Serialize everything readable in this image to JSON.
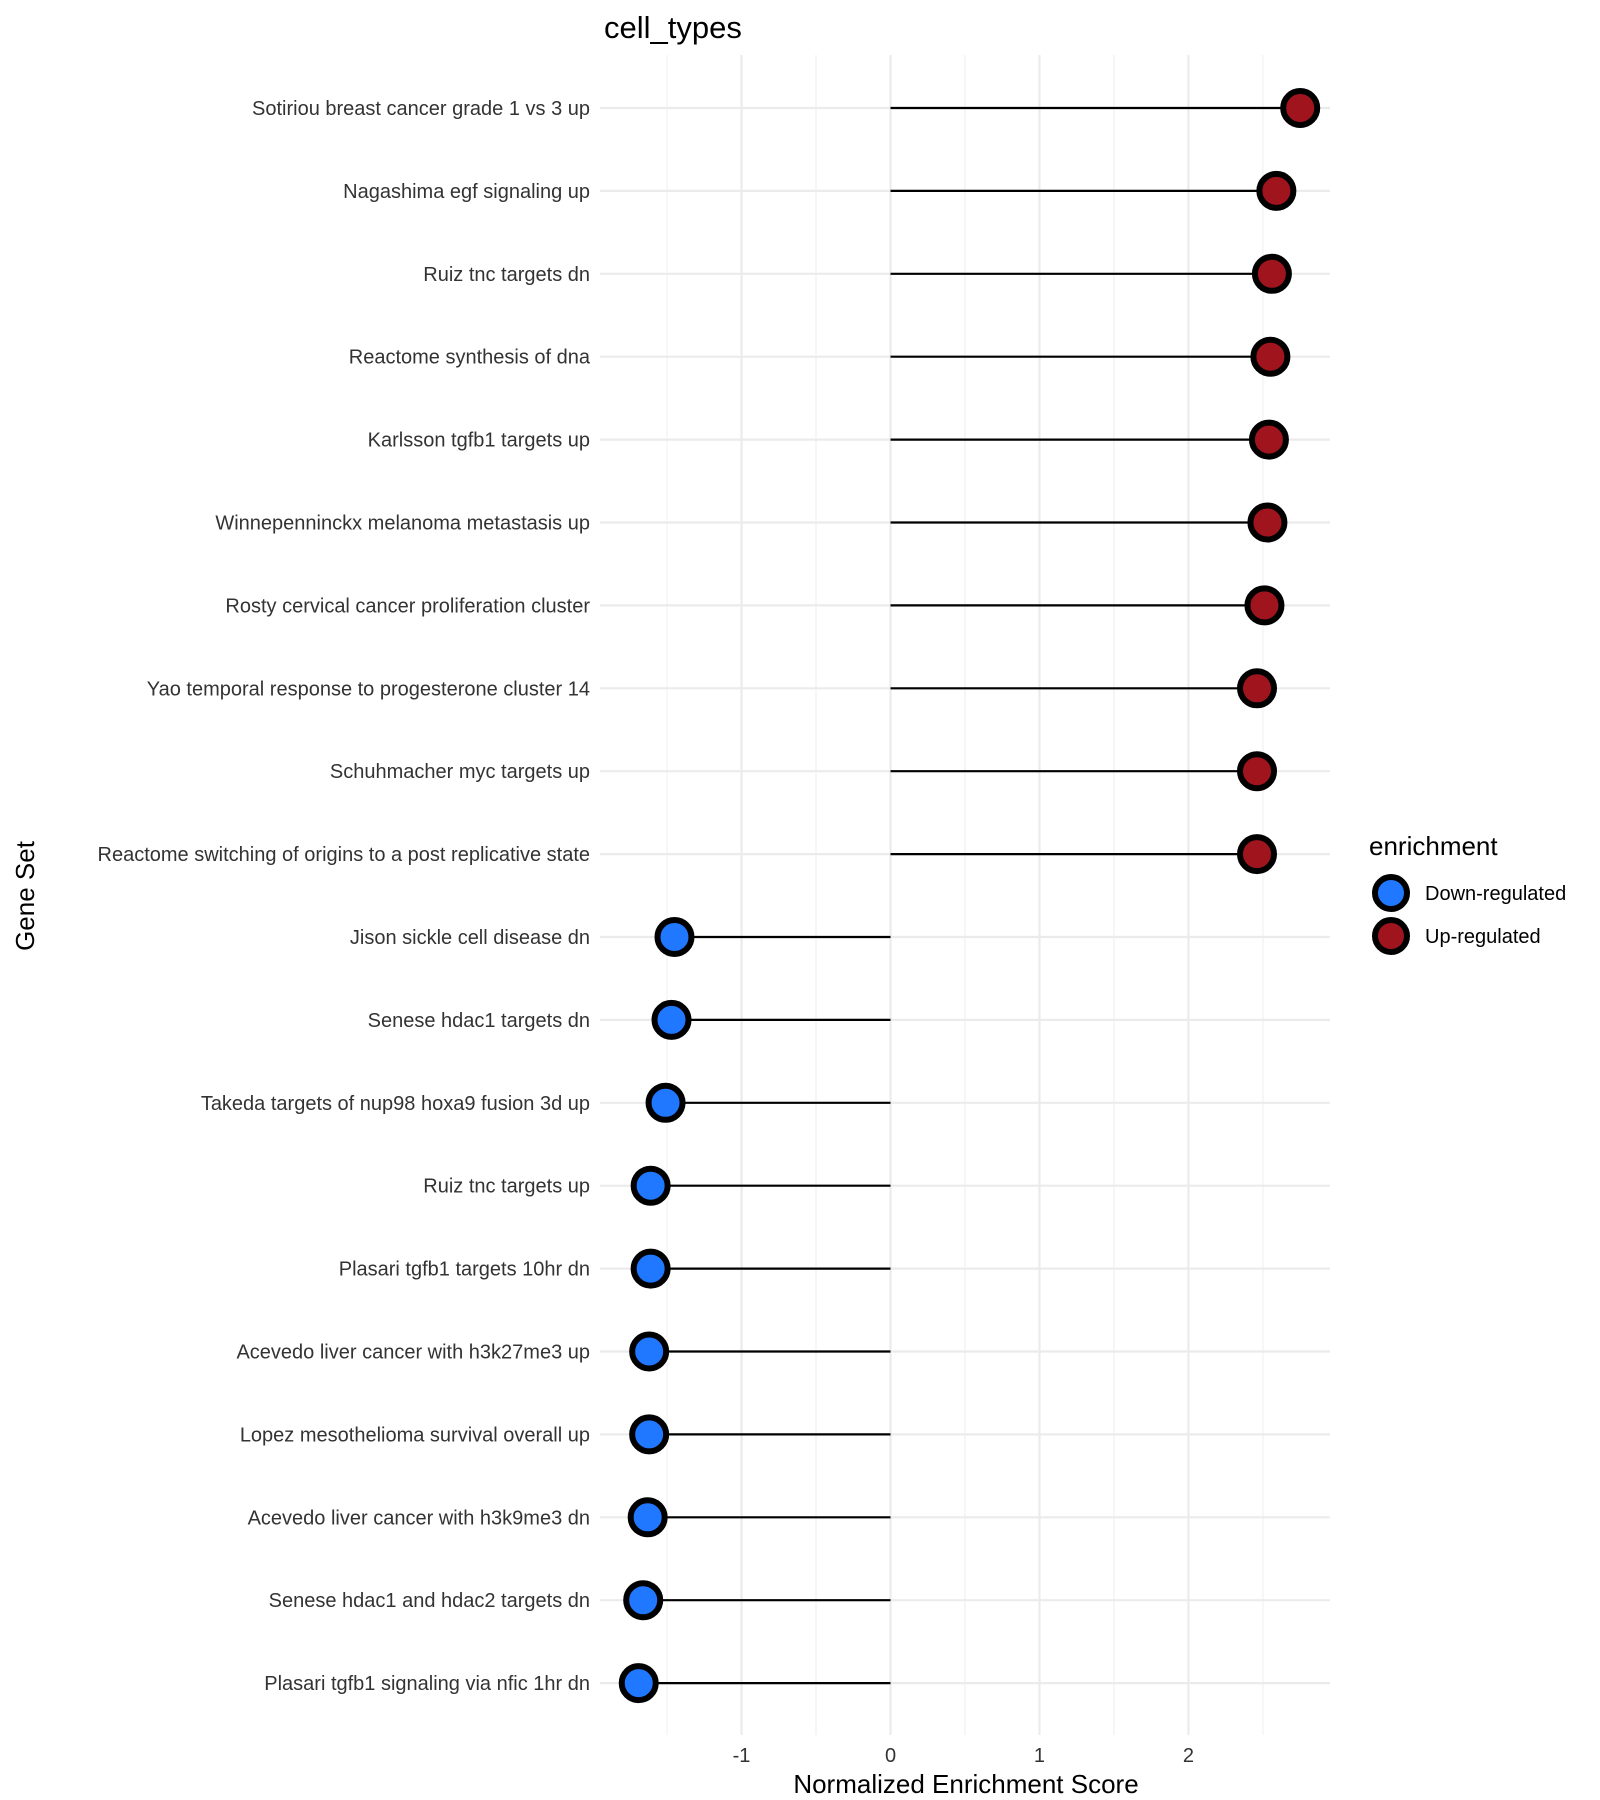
{
  "chart_data": {
    "type": "lollipop",
    "title": "cell_types",
    "xlabel": "Normalized Enrichment Score",
    "ylabel": "Gene Set",
    "xlim": [
      -1.95,
      2.95
    ],
    "xticks": [
      -1,
      0,
      1,
      2
    ],
    "xtick_labels": [
      "-1",
      "0",
      "1",
      "2"
    ],
    "grid": true,
    "legend": {
      "title": "enrichment",
      "position": "right",
      "entries": [
        {
          "label": "Down-regulated",
          "color": "#1f78ff"
        },
        {
          "label": "Up-regulated",
          "color": "#a0141e"
        }
      ]
    },
    "colors": {
      "up": "#a0141e",
      "down": "#1f78ff"
    },
    "categories": [
      "Sotiriou breast cancer grade 1 vs 3 up",
      "Nagashima egf signaling up",
      "Ruiz tnc targets dn",
      "Reactome synthesis of dna",
      "Karlsson tgfb1 targets up",
      "Winnepenninckx melanoma metastasis up",
      "Rosty cervical cancer proliferation cluster",
      "Yao temporal response to progesterone cluster 14",
      "Schuhmacher myc targets up",
      "Reactome switching of origins to a post replicative state",
      "Jison sickle cell disease dn",
      "Senese hdac1 targets dn",
      "Takeda targets of nup98 hoxa9 fusion 3d up",
      "Ruiz tnc targets up",
      "Plasari tgfb1 targets 10hr dn",
      "Acevedo liver cancer with h3k27me3 up",
      "Lopez mesothelioma survival overall up",
      "Acevedo liver cancer with h3k9me3 dn",
      "Senese hdac1 and hdac2 targets dn",
      "Plasari tgfb1 signaling via nfic 1hr dn"
    ],
    "values": [
      2.75,
      2.59,
      2.56,
      2.55,
      2.54,
      2.53,
      2.51,
      2.46,
      2.46,
      2.46,
      -1.45,
      -1.47,
      -1.51,
      -1.61,
      -1.61,
      -1.62,
      -1.62,
      -1.63,
      -1.66,
      -1.69
    ],
    "enrichment": [
      "Up-regulated",
      "Up-regulated",
      "Up-regulated",
      "Up-regulated",
      "Up-regulated",
      "Up-regulated",
      "Up-regulated",
      "Up-regulated",
      "Up-regulated",
      "Up-regulated",
      "Down-regulated",
      "Down-regulated",
      "Down-regulated",
      "Down-regulated",
      "Down-regulated",
      "Down-regulated",
      "Down-regulated",
      "Down-regulated",
      "Down-regulated",
      "Down-regulated"
    ]
  }
}
